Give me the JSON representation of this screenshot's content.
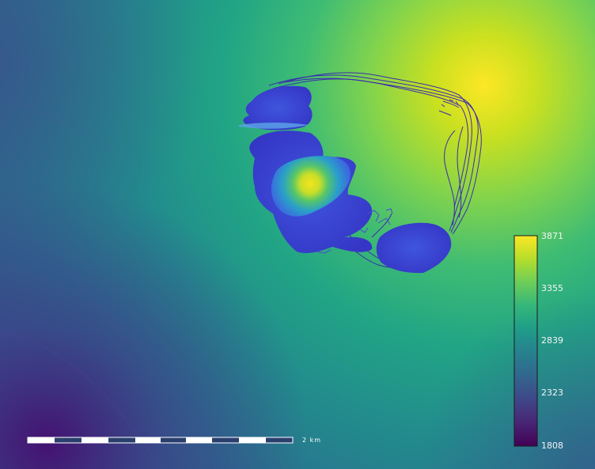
{
  "map": {
    "colormap": "viridis",
    "colorbar": {
      "min": 1808,
      "max": 3871,
      "ticks": [
        "3871",
        "3355",
        "2839",
        "2323",
        "1808"
      ],
      "colors": [
        "#fde725",
        "#b5de2b",
        "#6ece58",
        "#35b779",
        "#1f9e89",
        "#26828e",
        "#31688e",
        "#3e4989",
        "#482878",
        "#440154"
      ]
    },
    "scalebar": {
      "label": "2 km",
      "colors": {
        "light": "#ffffff",
        "dark": "#2b3f6e"
      }
    },
    "overlay": {
      "contour_color": "#3b2bb0",
      "hotspot_colors": [
        "#3c3bd0",
        "#3a6fdc",
        "#2ea6c4",
        "#6fd06a",
        "#f0e020"
      ]
    }
  }
}
